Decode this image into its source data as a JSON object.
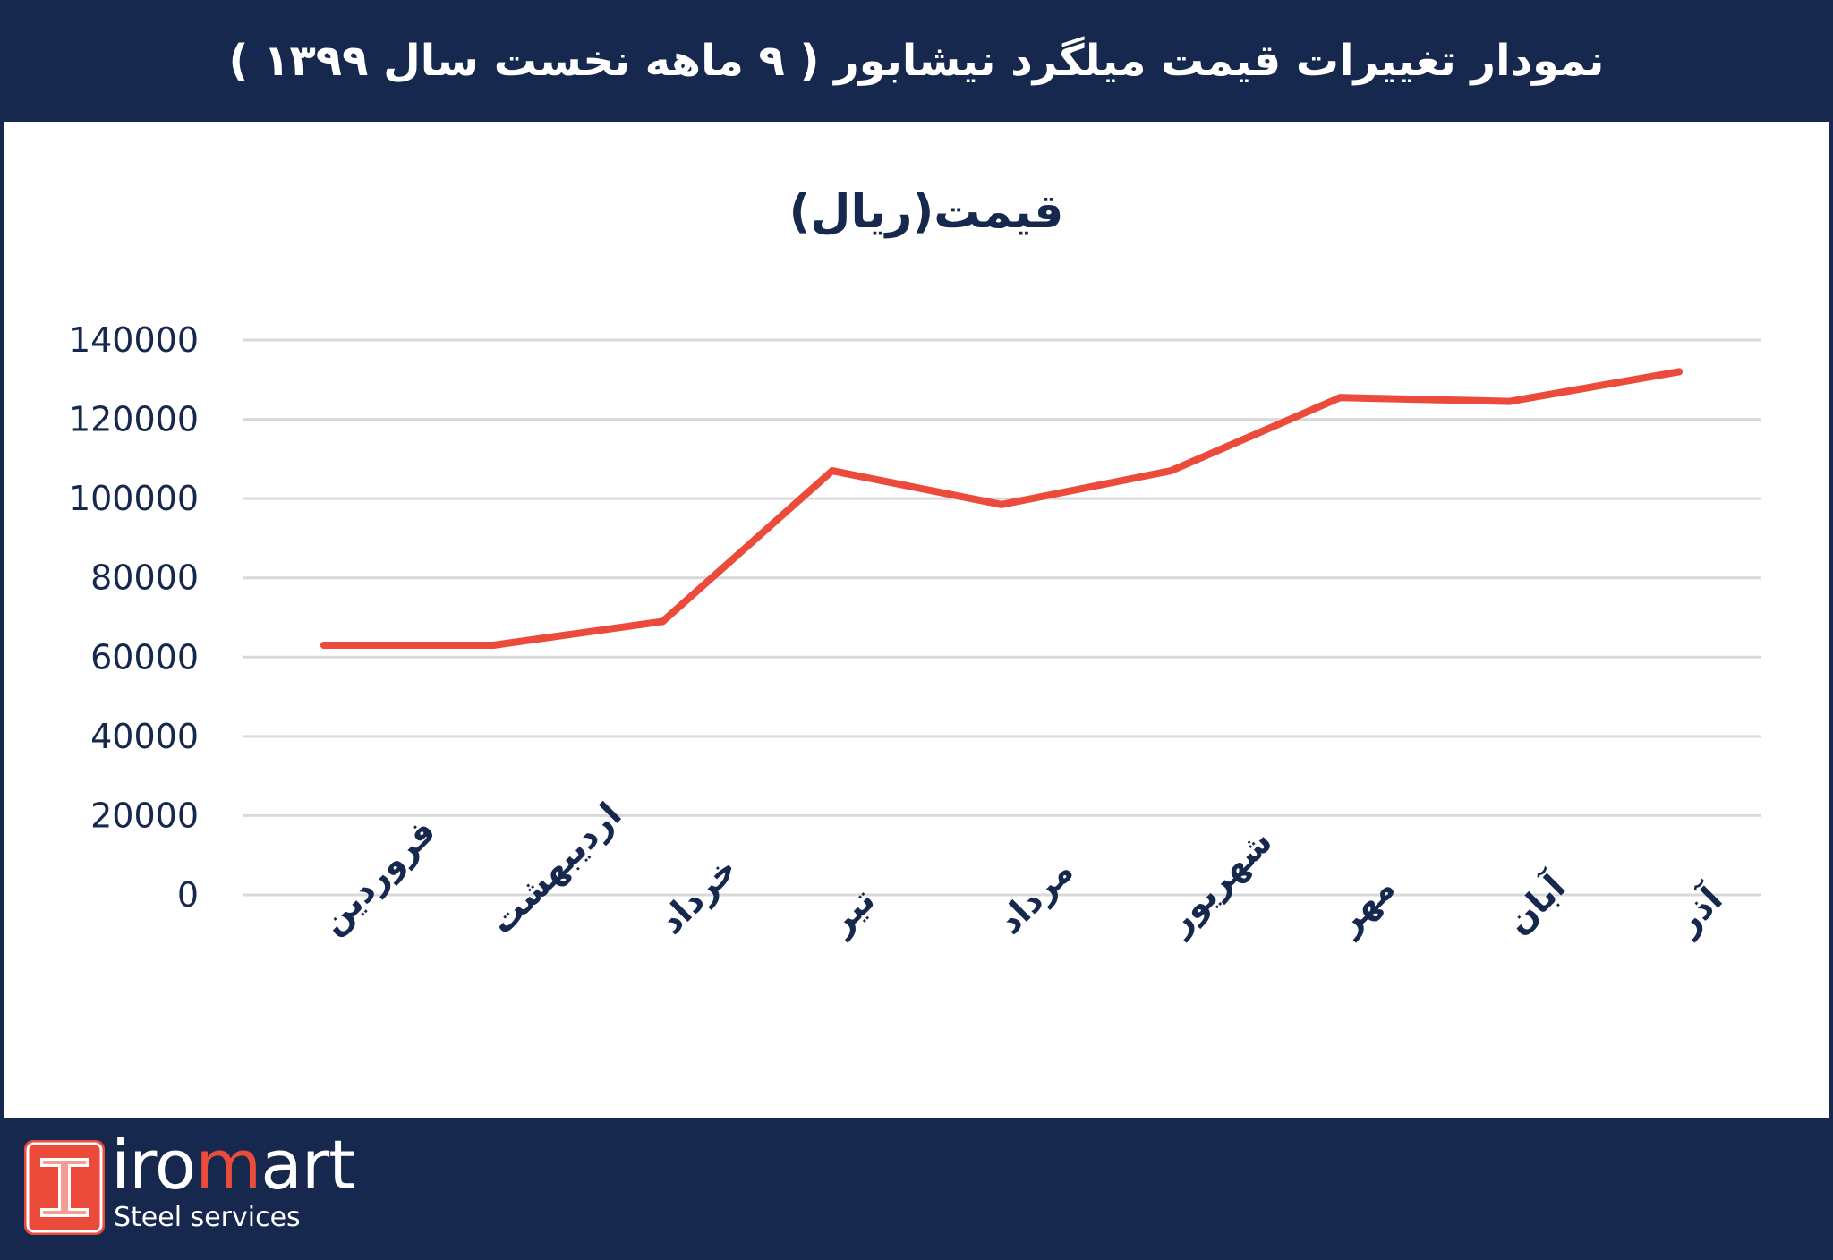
{
  "header": {
    "title": "نمودار تغییرات قیمت میلگرد نیشابور ( ۹ ماهه نخست سال ۱۳۹۹ )"
  },
  "chart_data": {
    "type": "line",
    "title": "قیمت(ریال)",
    "categories": [
      "فروردین",
      "اردیبهشت",
      "خرداد",
      "تیر",
      "مرداد",
      "شهریور",
      "مهر",
      "آبان",
      "آذر"
    ],
    "series": [
      {
        "values": [
          63000,
          63000,
          69000,
          107000,
          98500,
          107000,
          125500,
          124500,
          132000
        ],
        "color": "#ec4a3b"
      }
    ],
    "ylim": [
      0,
      140000
    ],
    "yticks": [
      0,
      20000,
      40000,
      60000,
      80000,
      100000,
      120000,
      140000
    ],
    "grid": true,
    "xlabel": "",
    "ylabel": ""
  },
  "footer": {
    "logo_prefix": "iro",
    "logo_accent": "m",
    "logo_suffix": "art",
    "tagline": "Steel services",
    "logo_mark_icon": "i-beam-icon",
    "brand_color": "#ec4a3b",
    "navy": "#16284d"
  }
}
